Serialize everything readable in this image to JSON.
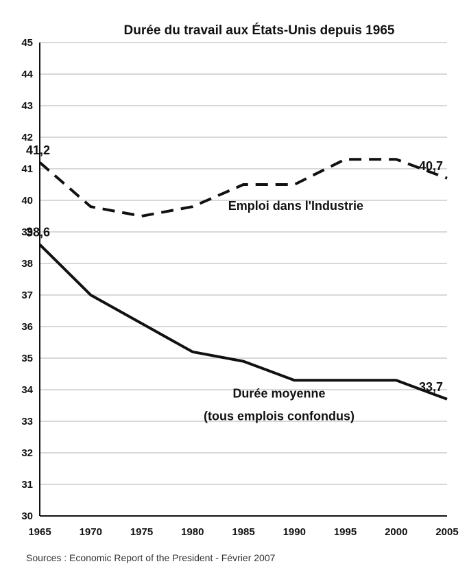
{
  "chart_data": {
    "type": "line",
    "title": "Durée du travail aux États-Unis depuis 1965",
    "source": "Sources : Economic Report of the President - Février 2007",
    "xlabel": "",
    "ylabel": "",
    "x": [
      1965,
      1970,
      1975,
      1980,
      1985,
      1990,
      1995,
      2000,
      2005
    ],
    "xlim": [
      1965,
      2005
    ],
    "ylim": [
      30,
      45
    ],
    "ytick_step": 1,
    "grid": true,
    "series": [
      {
        "name": "Emploi dans l'Industrie",
        "label_lines": [
          "Emploi dans l'Industrie"
        ],
        "style": "dashed",
        "values": [
          41.2,
          39.8,
          39.5,
          39.8,
          40.5,
          40.5,
          41.3,
          41.3,
          40.7
        ]
      },
      {
        "name": "Durée moyenne (tous emplois confondus)",
        "label_lines": [
          "Durée moyenne",
          "(tous emplois confondus)"
        ],
        "style": "solid",
        "values": [
          38.6,
          37.0,
          36.1,
          35.2,
          34.9,
          34.3,
          34.3,
          34.3,
          33.7
        ]
      }
    ],
    "annotations": [
      {
        "text": "41,2",
        "x": 1965,
        "y": 41.2
      },
      {
        "text": "40,7",
        "x": 2005,
        "y": 40.7
      },
      {
        "text": "38,6",
        "x": 1965,
        "y": 38.6
      },
      {
        "text": "33,7",
        "x": 2005,
        "y": 33.7
      }
    ],
    "colors": {
      "line": "#111111",
      "grid": "#cccccc"
    }
  }
}
